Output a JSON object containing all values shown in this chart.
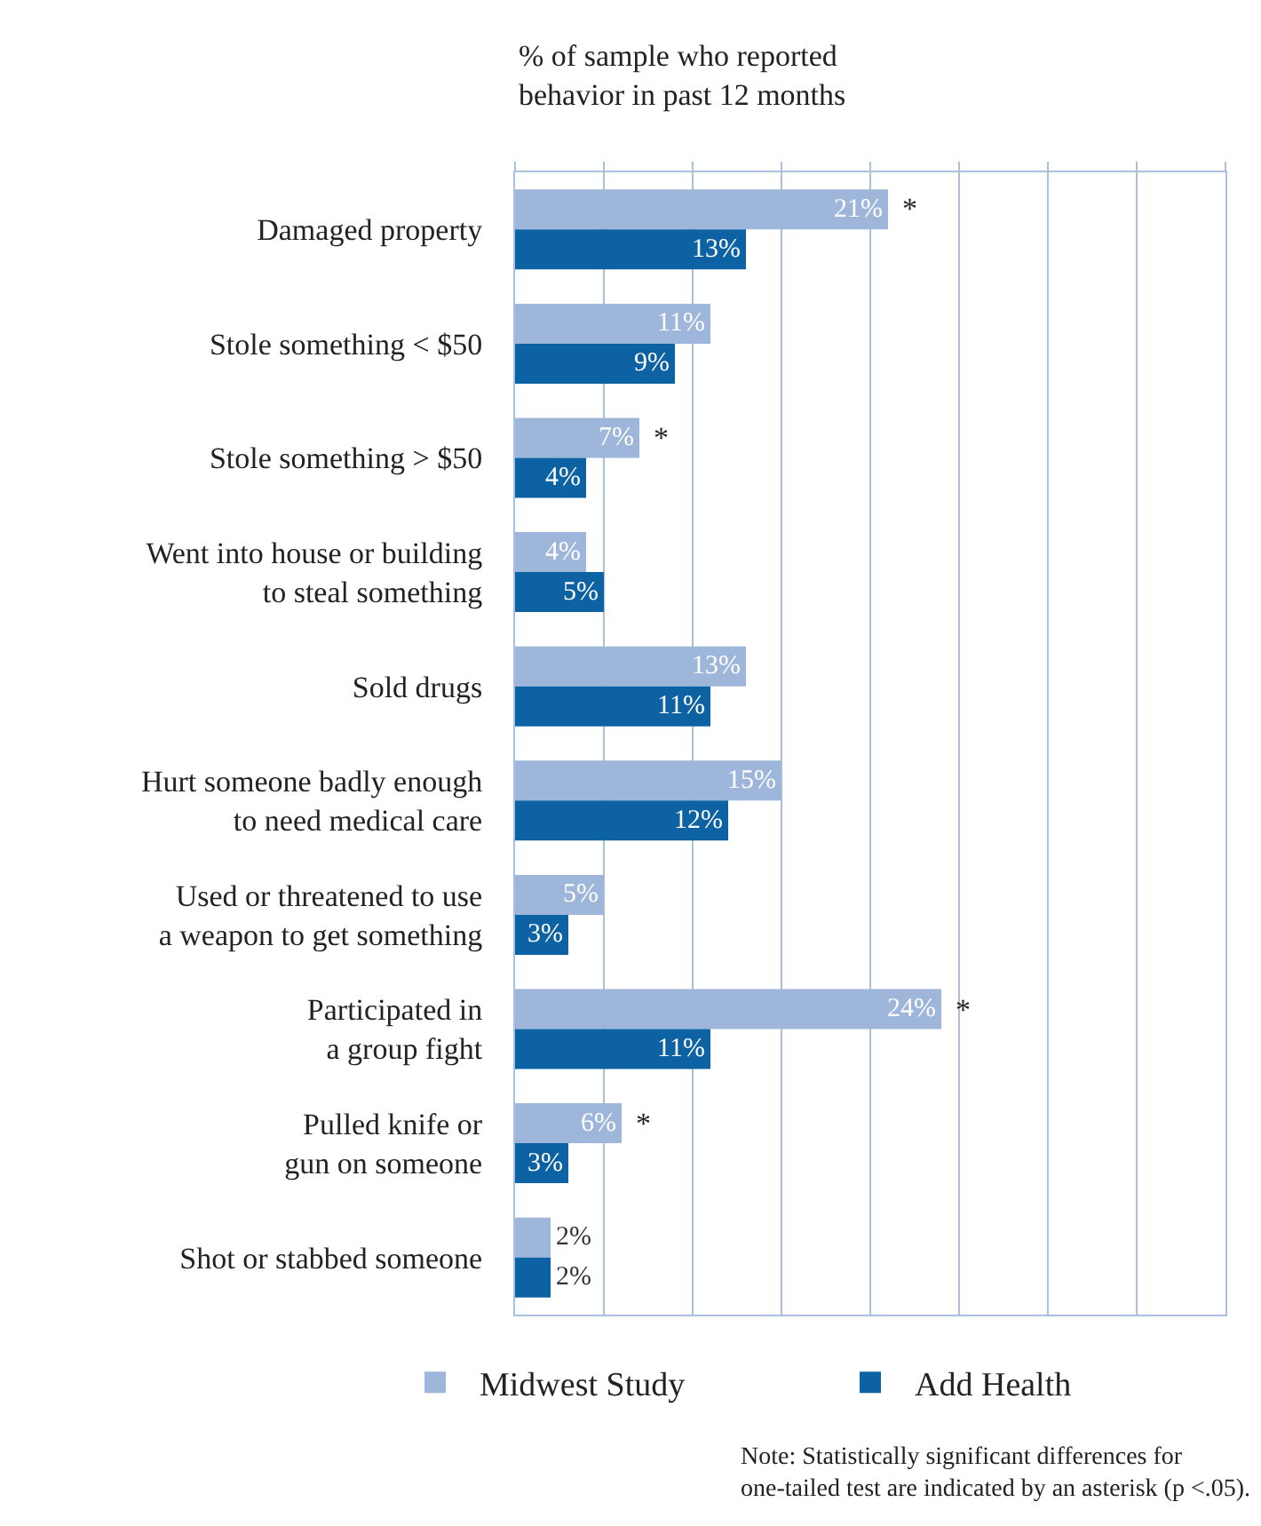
{
  "chart_data": {
    "type": "bar",
    "orientation": "horizontal",
    "xlabel": "% of sample who reported behavior in past 12 months",
    "categories": [
      "Damaged property",
      "Stole something < $50",
      "Stole something > $50",
      "Went into house or building to steal something",
      "Sold drugs",
      "Hurt someone badly enough to need medical care",
      "Used or threatened to use a weapon to get something",
      "Participated in a group fight",
      "Pulled knife or gun on someone",
      "Shot or stabbed someone"
    ],
    "series": [
      {
        "name": "Midwest Study",
        "color": "#9db6da",
        "values": [
          21,
          11,
          7,
          4,
          13,
          15,
          5,
          24,
          6,
          2
        ],
        "value_labels": [
          "21%",
          "11%",
          "7%",
          "4%",
          "13%",
          "15%",
          "5%",
          "24%",
          "6%",
          "2%"
        ]
      },
      {
        "name": "Add Health",
        "color": "#0d62a3",
        "values": [
          13,
          9,
          4,
          5,
          11,
          12,
          3,
          11,
          3,
          2
        ],
        "value_labels": [
          "13%",
          "9%",
          "4%",
          "5%",
          "11%",
          "12%",
          "3%",
          "11%",
          "3%",
          "2%"
        ]
      }
    ],
    "xlim": [
      0,
      40
    ],
    "xticks": [
      {
        "value": 0,
        "label": null
      },
      {
        "value": 5,
        "label": null
      },
      {
        "value": 10,
        "label": null
      },
      {
        "value": 15,
        "label": null
      },
      {
        "value": 20,
        "label": null
      },
      {
        "value": 25,
        "label": null
      },
      {
        "value": 30,
        "label": null
      },
      {
        "value": 35,
        "label": null
      },
      {
        "value": 40,
        "label": null
      }
    ],
    "grid": "x",
    "tick_labels": "y",
    "legend": "bottom",
    "annotations": [
      {
        "text": "*",
        "x": 21,
        "y": "Damaged property"
      },
      {
        "text": "*",
        "x": 7,
        "y": "Stole something > $50"
      },
      {
        "text": "*",
        "x": 24,
        "y": "Participated in a group fight"
      },
      {
        "text": "*",
        "x": 6,
        "y": "Pulled knife or gun on someone"
      },
      "Note: Statistically significant differences for one-tailed test are indicated by an asterisk (p <.05)."
    ]
  }
}
